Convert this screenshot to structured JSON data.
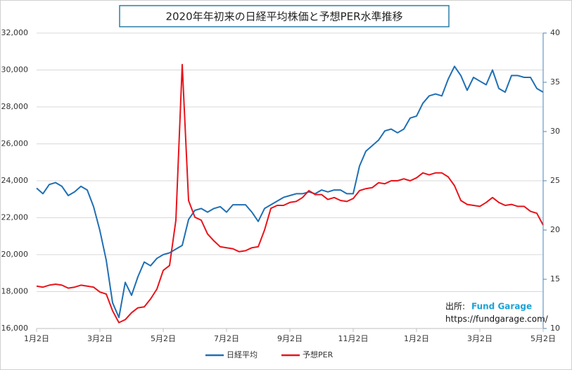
{
  "chart_data": {
    "type": "line",
    "title": "2020年年初来の日経平均株価と予想PER水準推移",
    "categories": [
      "1月2日",
      null,
      null,
      null,
      null,
      null,
      null,
      null,
      null,
      null,
      "3月2日",
      null,
      null,
      null,
      null,
      null,
      null,
      null,
      null,
      null,
      "5月2日",
      null,
      null,
      null,
      null,
      null,
      null,
      null,
      null,
      null,
      "7月2日",
      null,
      null,
      null,
      null,
      null,
      null,
      null,
      null,
      null,
      "9月2日",
      null,
      null,
      null,
      null,
      null,
      null,
      null,
      null,
      null,
      "11月2日",
      null,
      null,
      null,
      null,
      null,
      null,
      null,
      null,
      null,
      "1月2日",
      null,
      null,
      null,
      null,
      null,
      null,
      null,
      null,
      null,
      "3月2日",
      null,
      null,
      null,
      null,
      null,
      null,
      null,
      null,
      null,
      "5月2日"
    ],
    "series": [
      {
        "name": "日経平均",
        "color": "#1f6fb4",
        "axis": "y",
        "values": [
          23600,
          23300,
          23800,
          23900,
          23700,
          23200,
          23400,
          23700,
          23500,
          22600,
          21300,
          19700,
          17400,
          16600,
          18500,
          17800,
          18800,
          19600,
          19400,
          19800,
          20000,
          20100,
          20300,
          20500,
          21900,
          22400,
          22500,
          22300,
          22500,
          22600,
          22300,
          22700,
          22700,
          22700,
          22300,
          21800,
          22500,
          22700,
          22900,
          23100,
          23200,
          23300,
          23300,
          23400,
          23300,
          23500,
          23400,
          23500,
          23500,
          23300,
          23300,
          24800,
          25600,
          25900,
          26200,
          26700,
          26800,
          26600,
          26800,
          27400,
          27500,
          28200,
          28600,
          28700,
          28600,
          29500,
          30200,
          29700,
          28900,
          29600,
          29400,
          29200,
          30000,
          29000,
          28800,
          29700,
          29700,
          29600,
          29600,
          29000,
          28800
        ]
      },
      {
        "name": "予想PER",
        "color": "#e8141b",
        "axis": "y2",
        "values": [
          14.3,
          14.2,
          14.4,
          14.5,
          14.4,
          14.1,
          14.2,
          14.4,
          14.3,
          14.2,
          13.7,
          13.5,
          11.8,
          10.6,
          10.9,
          11.6,
          12.1,
          12.2,
          13.0,
          14.0,
          15.9,
          16.4,
          21.0,
          36.8,
          23.0,
          21.3,
          21.0,
          19.6,
          18.9,
          18.3,
          18.2,
          18.1,
          17.8,
          17.9,
          18.2,
          18.3,
          20.0,
          22.2,
          22.5,
          22.5,
          22.8,
          22.9,
          23.3,
          24.0,
          23.6,
          23.6,
          23.1,
          23.3,
          23.0,
          22.9,
          23.2,
          24.0,
          24.2,
          24.3,
          24.8,
          24.7,
          25.0,
          25.0,
          25.2,
          25.0,
          25.3,
          25.8,
          25.6,
          25.8,
          25.8,
          25.4,
          24.5,
          23.0,
          22.6,
          22.5,
          22.4,
          22.8,
          23.3,
          22.8,
          22.5,
          22.6,
          22.4,
          22.4,
          21.9,
          21.7,
          20.5
        ]
      }
    ],
    "ylim": [
      16000,
      32000
    ],
    "yticks": [
      {
        "value": 16000,
        "label": "16,000"
      },
      {
        "value": 18000,
        "label": "18,000"
      },
      {
        "value": 20000,
        "label": "20,000"
      },
      {
        "value": 22000,
        "label": "22,000"
      },
      {
        "value": 24000,
        "label": "24,000"
      },
      {
        "value": 26000,
        "label": "26,000"
      },
      {
        "value": 28000,
        "label": "28,000"
      },
      {
        "value": 30000,
        "label": "30,000"
      },
      {
        "value": 32000,
        "label": "32,000"
      }
    ],
    "y2lim": [
      10,
      40
    ],
    "y2ticks": [
      10,
      15,
      20,
      25,
      30,
      35,
      40
    ],
    "grid": true,
    "legend": "bottom",
    "annotations": [
      "出所:",
      "Fund Garage",
      "https://fundgarage.com/"
    ]
  }
}
